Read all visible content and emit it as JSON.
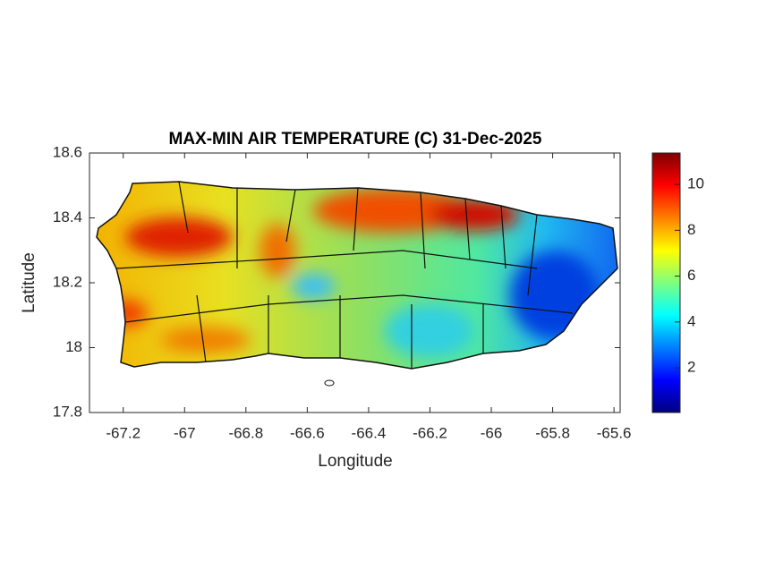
{
  "chart_data": {
    "type": "map",
    "title": "MAX-MIN AIR TEMPERATURE (C) 31-Dec-2025",
    "xlabel": "Longitude",
    "ylabel": "Latitude",
    "xlim": [
      -67.31,
      -65.58
    ],
    "ylim": [
      17.8,
      18.6
    ],
    "xticks": [
      -67.2,
      -67,
      -66.8,
      -66.6,
      -66.4,
      -66.2,
      -66,
      -65.8,
      -65.6
    ],
    "yticks": [
      17.8,
      18,
      18.2,
      18.4,
      18.6
    ],
    "colormap": "jet",
    "clim": [
      0.05,
      11.37
    ],
    "cticks": [
      2,
      4,
      6,
      8,
      10
    ]
  }
}
